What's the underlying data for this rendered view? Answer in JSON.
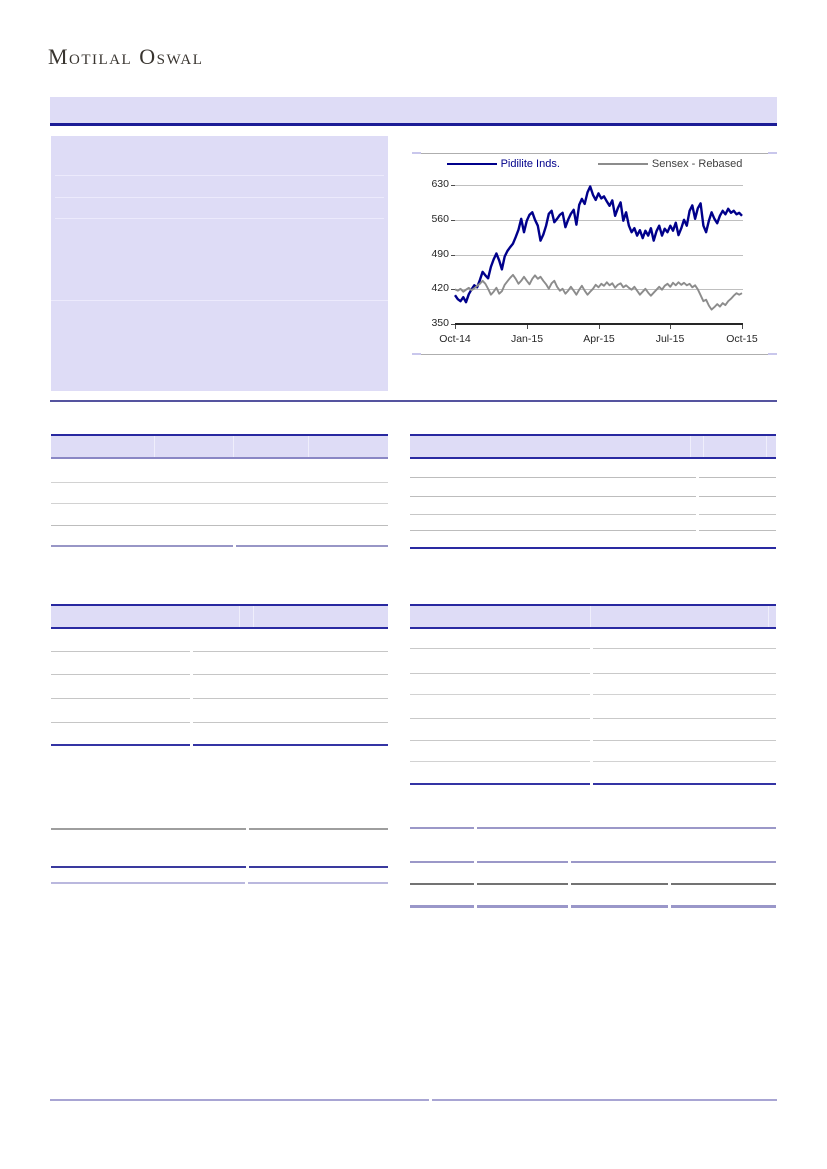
{
  "logo": {
    "text": "Motilal Oswal"
  },
  "colors": {
    "lavender_fill": "#dedcf6",
    "navy_border": "#1c1c96",
    "purple_rule": "#55549f",
    "footer_rule": "#a8a5d3",
    "gray_rule": "#c9c9c9"
  },
  "chart_data": {
    "type": "line",
    "title": "",
    "legend_position": "top",
    "grid": true,
    "ylim": [
      350,
      630
    ],
    "y_ticks": [
      "630",
      "560",
      "490",
      "420",
      "350"
    ],
    "x_ticks": [
      "Oct-14",
      "Jan-15",
      "Apr-15",
      "Jul-15",
      "Oct-15"
    ],
    "label_colors": [
      "#00008b",
      "#3f3f3f"
    ],
    "series": [
      {
        "name": "Pidilite Inds.",
        "color": "#00008b",
        "values": [
          408,
          400,
          396,
          404,
          394,
          410,
          420,
          428,
          424,
          438,
          455,
          448,
          442,
          465,
          480,
          492,
          478,
          460,
          486,
          497,
          505,
          512,
          525,
          540,
          562,
          535,
          558,
          570,
          575,
          560,
          548,
          518,
          530,
          548,
          572,
          578,
          555,
          562,
          570,
          574,
          545,
          560,
          572,
          580,
          550,
          590,
          602,
          592,
          615,
          627,
          610,
          600,
          613,
          603,
          607,
          597,
          588,
          599,
          568,
          583,
          595,
          558,
          575,
          548,
          535,
          543,
          528,
          539,
          523,
          538,
          528,
          543,
          518,
          537,
          548,
          528,
          542,
          535,
          548,
          538,
          554,
          529,
          543,
          560,
          548,
          578,
          589,
          562,
          583,
          593,
          548,
          535,
          558,
          575,
          562,
          553,
          568,
          578,
          571,
          582,
          574,
          578,
          571,
          574,
          568
        ]
      },
      {
        "name": "Sensex - Rebased",
        "color": "#8c8c8c",
        "values": [
          420,
          417,
          421,
          415,
          419,
          423,
          418,
          422,
          427,
          431,
          437,
          431,
          421,
          409,
          415,
          423,
          411,
          416,
          429,
          436,
          443,
          449,
          441,
          431,
          437,
          445,
          437,
          430,
          441,
          448,
          441,
          445,
          437,
          430,
          421,
          432,
          437,
          425,
          417,
          421,
          411,
          417,
          425,
          417,
          409,
          419,
          427,
          417,
          409,
          415,
          421,
          429,
          424,
          431,
          427,
          434,
          428,
          432,
          423,
          429,
          432,
          424,
          428,
          423,
          419,
          425,
          417,
          409,
          415,
          421,
          413,
          407,
          413,
          419,
          425,
          419,
          427,
          431,
          425,
          433,
          428,
          434,
          429,
          433,
          428,
          431,
          424,
          428,
          420,
          408,
          396,
          399,
          387,
          379,
          384,
          390,
          385,
          392,
          388,
          396,
          401,
          407,
          412,
          409,
          412
        ]
      }
    ]
  }
}
